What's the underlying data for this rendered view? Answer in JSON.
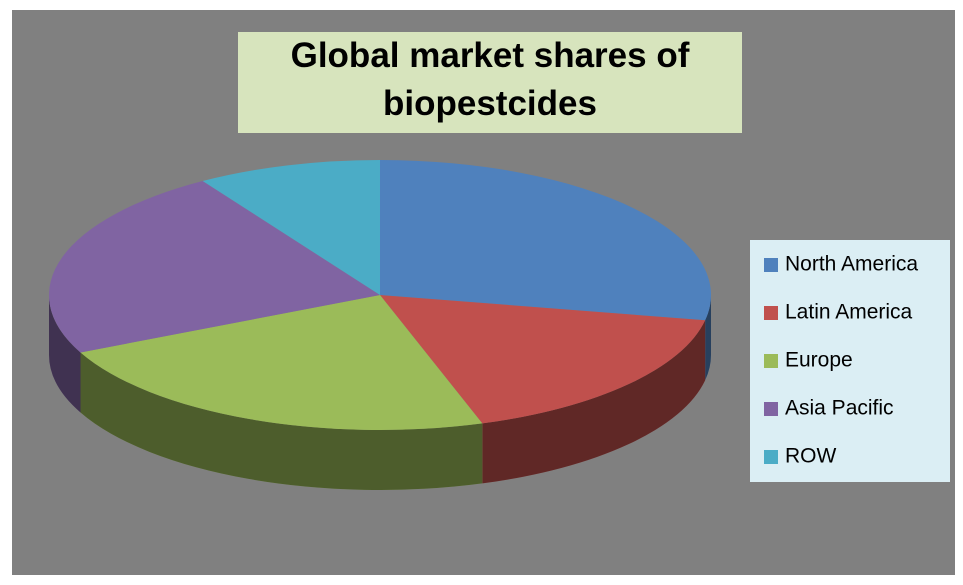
{
  "chart_data": {
    "type": "pie",
    "title": "Global market shares of biopestcides",
    "categories": [
      "North America",
      "Latin America",
      "Europe",
      "Asia Pacific",
      "ROW"
    ],
    "values": [
      28,
      17,
      23,
      23,
      9
    ],
    "colors": [
      "#4f81bd",
      "#c0504d",
      "#9bbb59",
      "#8064a2",
      "#4bacc6"
    ],
    "legend": "right"
  }
}
